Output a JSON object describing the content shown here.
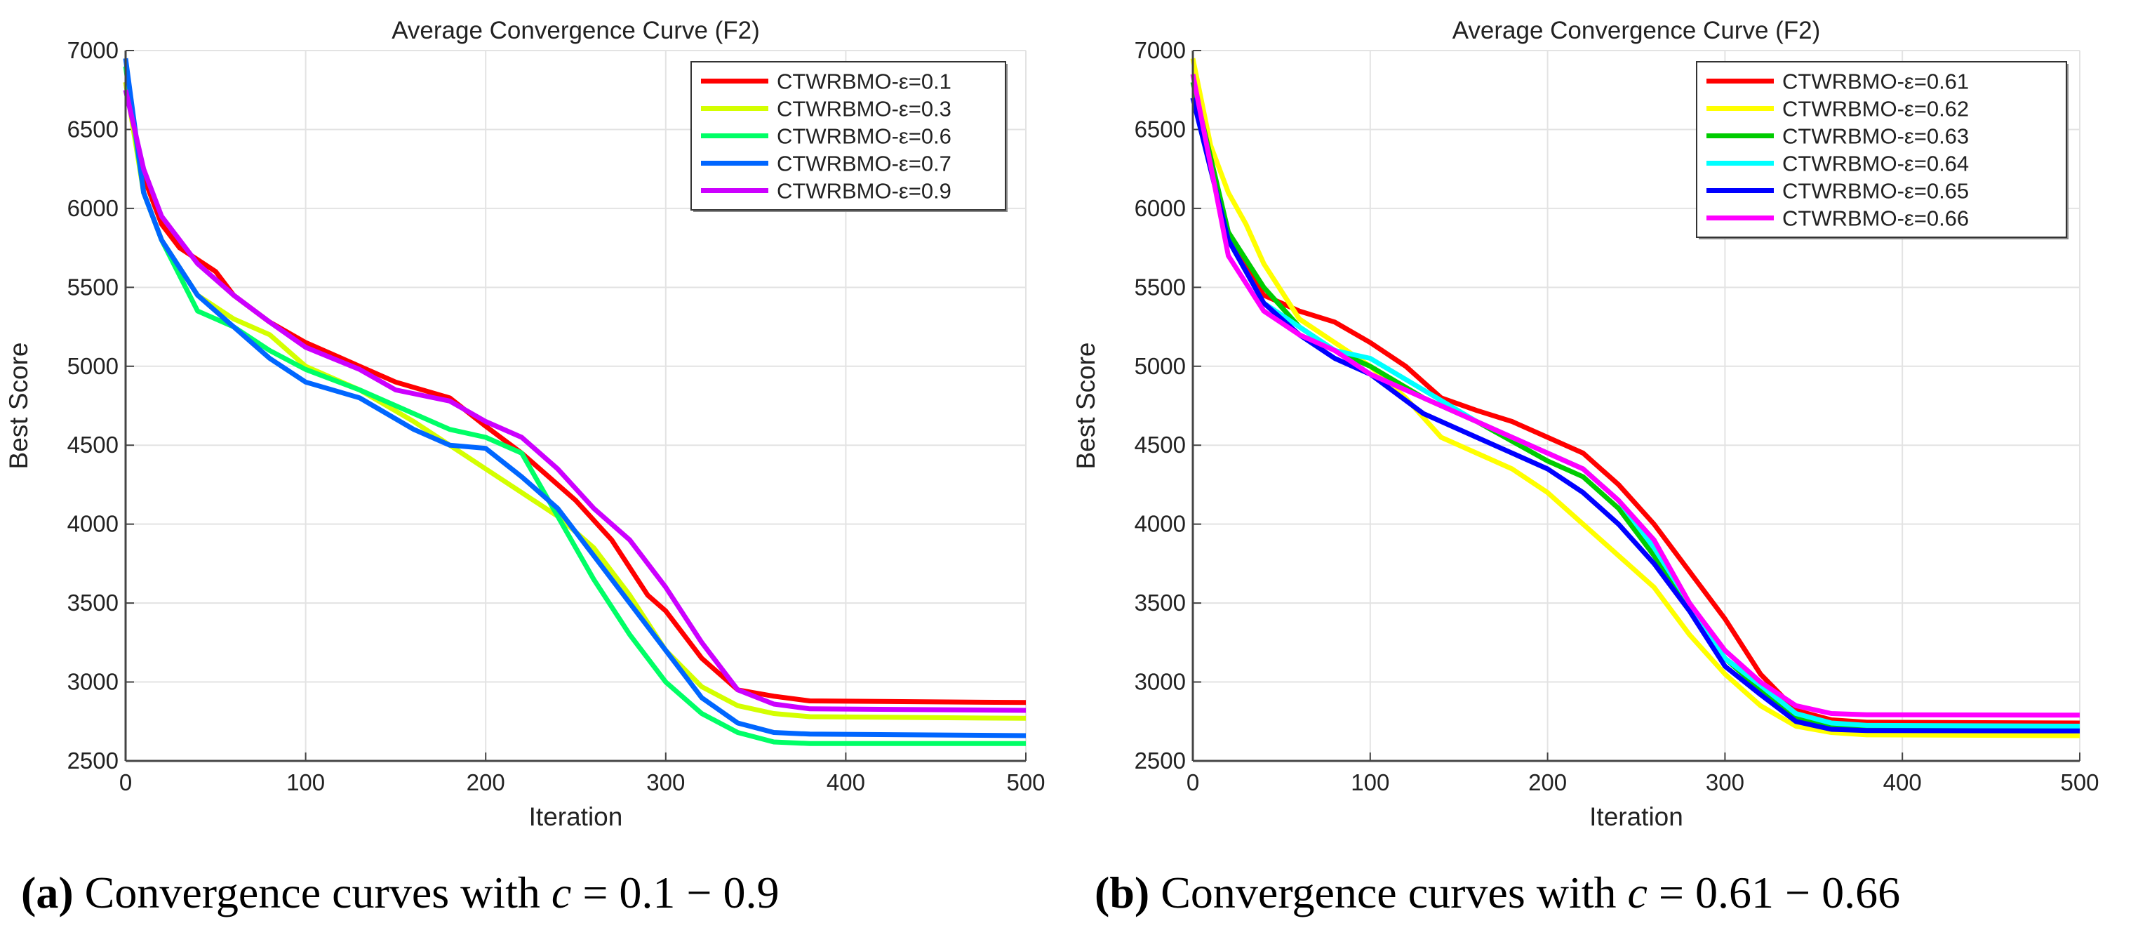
{
  "chart_data": [
    {
      "type": "line",
      "title": "Average Convergence Curve (F2)",
      "xlabel": "Iteration",
      "ylabel": "Best Score",
      "xlim": [
        0,
        500
      ],
      "ylim": [
        2500,
        7000
      ],
      "xticks": [
        0,
        100,
        200,
        300,
        400,
        500
      ],
      "yticks": [
        2500,
        3000,
        3500,
        4000,
        4500,
        5000,
        5500,
        6000,
        6500,
        7000
      ],
      "grid": true,
      "legend_position": "top-right",
      "series": [
        {
          "name": "CTWRBMO-ε=0.1",
          "color": "#ff0000",
          "x": [
            0,
            10,
            20,
            30,
            50,
            60,
            80,
            100,
            120,
            150,
            180,
            200,
            220,
            250,
            270,
            290,
            300,
            320,
            340,
            360,
            380,
            500
          ],
          "y": [
            6800,
            6200,
            5900,
            5750,
            5600,
            5450,
            5280,
            5150,
            5050,
            4900,
            4800,
            4620,
            4450,
            4150,
            3900,
            3550,
            3450,
            3150,
            2950,
            2910,
            2880,
            2870
          ]
        },
        {
          "name": "CTWRBMO-ε=0.3",
          "color": "#d4ff00",
          "x": [
            0,
            10,
            20,
            40,
            60,
            80,
            100,
            130,
            160,
            180,
            200,
            220,
            240,
            260,
            280,
            300,
            320,
            340,
            360,
            380,
            500
          ],
          "y": [
            6800,
            6100,
            5800,
            5450,
            5300,
            5200,
            5000,
            4850,
            4650,
            4500,
            4350,
            4200,
            4050,
            3850,
            3550,
            3200,
            2970,
            2850,
            2800,
            2780,
            2770
          ]
        },
        {
          "name": "CTWRBMO-ε=0.6",
          "color": "#00ff66",
          "x": [
            0,
            10,
            20,
            40,
            60,
            80,
            100,
            130,
            160,
            180,
            200,
            220,
            240,
            260,
            280,
            300,
            320,
            340,
            360,
            380,
            500
          ],
          "y": [
            6900,
            6100,
            5800,
            5350,
            5250,
            5100,
            4980,
            4850,
            4700,
            4600,
            4550,
            4450,
            4050,
            3650,
            3300,
            3000,
            2800,
            2680,
            2620,
            2610,
            2610
          ]
        },
        {
          "name": "CTWRBMO-ε=0.7",
          "color": "#0066ff",
          "x": [
            0,
            10,
            20,
            40,
            60,
            80,
            100,
            130,
            160,
            180,
            200,
            220,
            240,
            260,
            280,
            300,
            320,
            340,
            360,
            380,
            500
          ],
          "y": [
            6950,
            6100,
            5800,
            5450,
            5250,
            5050,
            4900,
            4800,
            4600,
            4500,
            4480,
            4300,
            4100,
            3800,
            3500,
            3200,
            2900,
            2740,
            2680,
            2670,
            2660
          ]
        },
        {
          "name": "CTWRBMO-ε=0.9",
          "color": "#cc00ff",
          "x": [
            0,
            10,
            20,
            40,
            60,
            80,
            100,
            130,
            150,
            180,
            200,
            220,
            240,
            260,
            280,
            300,
            320,
            340,
            360,
            380,
            500
          ],
          "y": [
            6750,
            6250,
            5950,
            5650,
            5450,
            5280,
            5120,
            4980,
            4850,
            4780,
            4650,
            4550,
            4350,
            4100,
            3900,
            3600,
            3250,
            2950,
            2860,
            2830,
            2820
          ]
        }
      ]
    },
    {
      "type": "line",
      "title": "Average Convergence Curve (F2)",
      "xlabel": "Iteration",
      "ylabel": "Best Score",
      "xlim": [
        0,
        500
      ],
      "ylim": [
        2500,
        7000
      ],
      "xticks": [
        0,
        100,
        200,
        300,
        400,
        500
      ],
      "yticks": [
        2500,
        3000,
        3500,
        4000,
        4500,
        5000,
        5500,
        6000,
        6500,
        7000
      ],
      "grid": true,
      "legend_position": "top-right",
      "series": [
        {
          "name": "CTWRBMO-ε=0.61",
          "color": "#ff0000",
          "x": [
            0,
            20,
            40,
            60,
            80,
            100,
            120,
            140,
            160,
            180,
            200,
            220,
            240,
            260,
            280,
            300,
            320,
            340,
            360,
            380,
            500
          ],
          "y": [
            6700,
            5800,
            5450,
            5350,
            5280,
            5150,
            5000,
            4800,
            4720,
            4650,
            4550,
            4450,
            4250,
            4000,
            3700,
            3400,
            3050,
            2820,
            2760,
            2745,
            2740
          ]
        },
        {
          "name": "CTWRBMO-ε=0.62",
          "color": "#ffff00",
          "x": [
            0,
            10,
            20,
            30,
            40,
            60,
            80,
            100,
            120,
            140,
            160,
            180,
            200,
            220,
            240,
            260,
            280,
            300,
            320,
            340,
            360,
            380,
            500
          ],
          "y": [
            6950,
            6400,
            6100,
            5900,
            5650,
            5300,
            5150,
            5000,
            4800,
            4550,
            4450,
            4350,
            4200,
            4000,
            3800,
            3600,
            3300,
            3050,
            2850,
            2720,
            2680,
            2665,
            2660
          ]
        },
        {
          "name": "CTWRBMO-ε=0.63",
          "color": "#00cc00",
          "x": [
            0,
            20,
            40,
            60,
            80,
            100,
            130,
            160,
            200,
            220,
            240,
            260,
            280,
            300,
            320,
            340,
            360,
            380,
            500
          ],
          "y": [
            6800,
            5850,
            5500,
            5250,
            5100,
            5000,
            4800,
            4650,
            4400,
            4300,
            4100,
            3800,
            3500,
            3150,
            2950,
            2780,
            2720,
            2705,
            2700
          ]
        },
        {
          "name": "CTWRBMO-ε=0.64",
          "color": "#00ffff",
          "x": [
            0,
            20,
            40,
            60,
            80,
            100,
            130,
            160,
            200,
            220,
            240,
            260,
            280,
            300,
            320,
            340,
            360,
            380,
            500
          ],
          "y": [
            6700,
            5800,
            5400,
            5250,
            5100,
            5050,
            4850,
            4650,
            4450,
            4350,
            4150,
            3850,
            3500,
            3150,
            2980,
            2800,
            2740,
            2725,
            2720
          ]
        },
        {
          "name": "CTWRBMO-ε=0.65",
          "color": "#0000ff",
          "x": [
            0,
            20,
            40,
            60,
            80,
            100,
            130,
            160,
            200,
            220,
            240,
            260,
            280,
            300,
            320,
            340,
            360,
            380,
            500
          ],
          "y": [
            6700,
            5800,
            5400,
            5200,
            5050,
            4950,
            4700,
            4550,
            4350,
            4200,
            4000,
            3750,
            3450,
            3100,
            2920,
            2750,
            2700,
            2692,
            2690
          ]
        },
        {
          "name": "CTWRBMO-ε=0.66",
          "color": "#ff00ff",
          "x": [
            0,
            20,
            40,
            60,
            80,
            100,
            130,
            160,
            200,
            220,
            240,
            260,
            280,
            300,
            320,
            340,
            360,
            380,
            500
          ],
          "y": [
            6850,
            5700,
            5350,
            5200,
            5100,
            4950,
            4800,
            4650,
            4450,
            4350,
            4150,
            3900,
            3500,
            3200,
            3000,
            2850,
            2800,
            2792,
            2790
          ]
        }
      ]
    }
  ],
  "captions": [
    {
      "label": "(a)",
      "text": " Convergence curves with ",
      "var": "c",
      "expr": " = 0.1 − 0.9"
    },
    {
      "label": "(b)",
      "text": " Convergence curves with ",
      "var": "c",
      "expr": " = 0.61 − 0.66"
    }
  ]
}
